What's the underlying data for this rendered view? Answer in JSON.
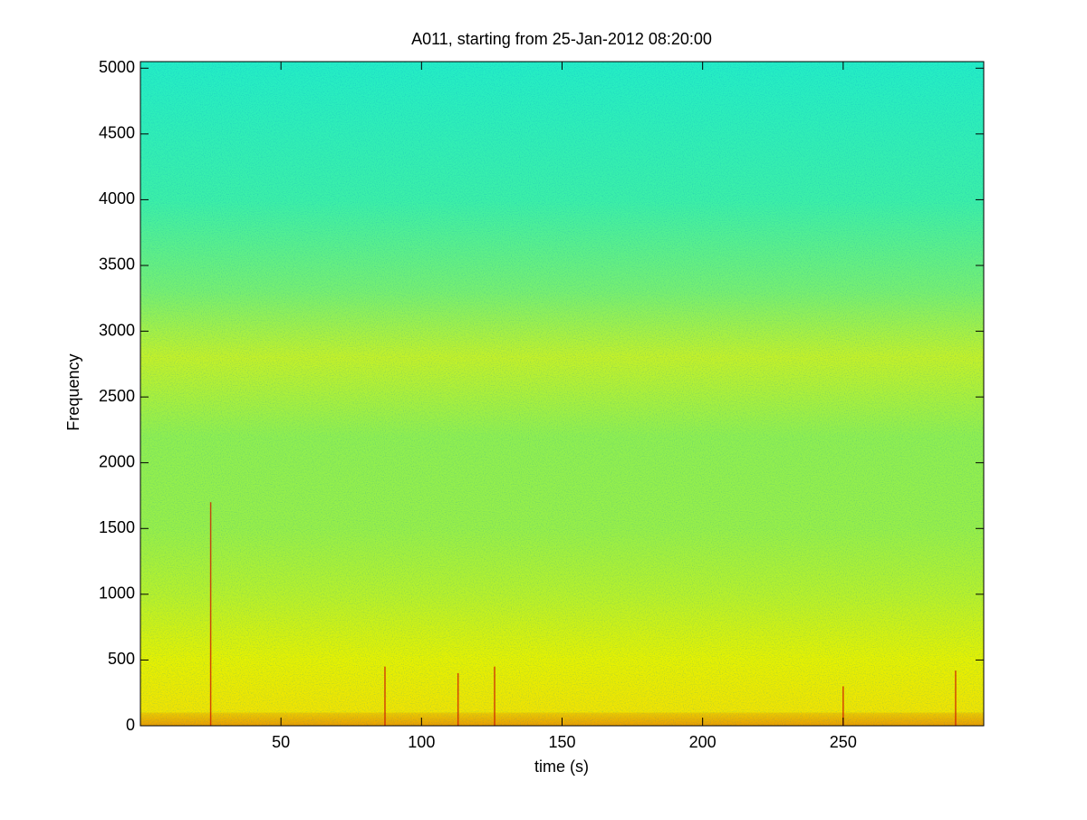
{
  "chart_data": {
    "type": "spectrogram",
    "title": "A011, starting from 25-Jan-2012 08:20:00",
    "xlabel": "time (s)",
    "ylabel": "Frequency",
    "xlim": [
      0,
      300
    ],
    "xticks": [
      50,
      100,
      150,
      200,
      250
    ],
    "ylim": [
      0,
      5050
    ],
    "yticks": [
      0,
      500,
      1000,
      1500,
      2000,
      2500,
      3000,
      3500,
      4000,
      4500,
      5000
    ],
    "color_stops": [
      {
        "frequency": 0,
        "color": "#f0b000"
      },
      {
        "frequency": 100,
        "color": "#f2e400"
      },
      {
        "frequency": 500,
        "color": "#e6f200"
      },
      {
        "frequency": 1000,
        "color": "#b8f22a"
      },
      {
        "frequency": 1500,
        "color": "#98f048"
      },
      {
        "frequency": 2200,
        "color": "#90f050"
      },
      {
        "frequency": 2800,
        "color": "#c4f228"
      },
      {
        "frequency": 3300,
        "color": "#78f070"
      },
      {
        "frequency": 4000,
        "color": "#3cf0a8"
      },
      {
        "frequency": 5050,
        "color": "#24eec6"
      }
    ],
    "events": {
      "color": "#d02000",
      "time": [
        25,
        87,
        113,
        126,
        250,
        290
      ],
      "frequency": [
        1700,
        450,
        400,
        450,
        300,
        420
      ]
    }
  }
}
